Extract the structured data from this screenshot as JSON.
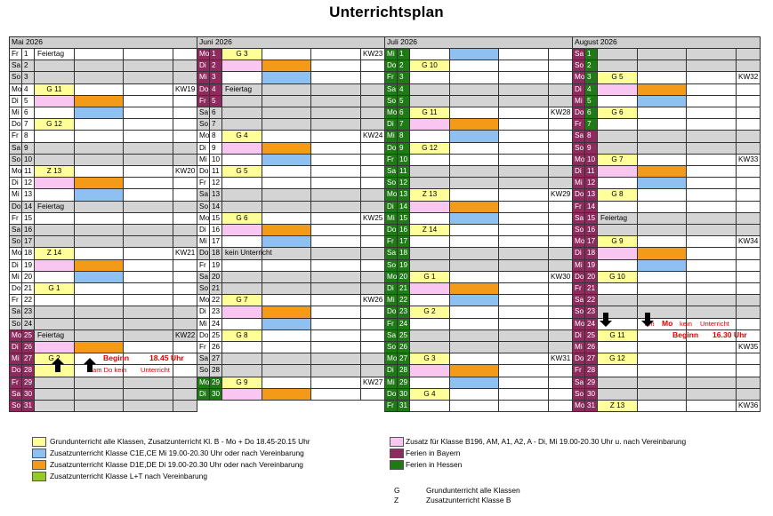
{
  "title": "Unterrichtsplan",
  "colors": {
    "yellow": "#ffff99",
    "pink": "#f8c6f0",
    "blue": "#8fc0f2",
    "orange": "#f39a19",
    "lightgreen": "#95c928",
    "bayern": "#8e2a5e",
    "hessen": "#1e7a14",
    "weekend": "#d4d4d4"
  },
  "months": [
    {
      "name": "Mai 2026",
      "rows": [
        {
          "d": "Fr",
          "n": "1",
          "dc": "w",
          "text": "Feiertag"
        },
        {
          "d": "Sa",
          "n": "2",
          "dc": "gy",
          "text": "",
          "row": "gy"
        },
        {
          "d": "So",
          "n": "3",
          "dc": "gy",
          "text": "",
          "row": "gy"
        },
        {
          "d": "Mo",
          "n": "4",
          "dc": "w",
          "y": "G 11",
          "kw": "KW19"
        },
        {
          "d": "Di",
          "n": "5",
          "dc": "w",
          "p": true,
          "o": true
        },
        {
          "d": "Mi",
          "n": "6",
          "dc": "w",
          "b": true
        },
        {
          "d": "Do",
          "n": "7",
          "dc": "w",
          "y": "G 12"
        },
        {
          "d": "Fr",
          "n": "8",
          "dc": "w"
        },
        {
          "d": "Sa",
          "n": "9",
          "dc": "gy",
          "row": "gy"
        },
        {
          "d": "So",
          "n": "10",
          "dc": "gy",
          "row": "gy"
        },
        {
          "d": "Mo",
          "n": "11",
          "dc": "w",
          "y": "Z 13",
          "kw": "KW20"
        },
        {
          "d": "Di",
          "n": "12",
          "dc": "w",
          "p": true,
          "o": true
        },
        {
          "d": "Mi",
          "n": "13",
          "dc": "w",
          "b": true
        },
        {
          "d": "Do",
          "n": "14",
          "dc": "gy",
          "text": "Feiertag",
          "row": "gy"
        },
        {
          "d": "Fr",
          "n": "15",
          "dc": "w"
        },
        {
          "d": "Sa",
          "n": "16",
          "dc": "gy",
          "row": "gy"
        },
        {
          "d": "So",
          "n": "17",
          "dc": "gy",
          "row": "gy"
        },
        {
          "d": "Mo",
          "n": "18",
          "dc": "w",
          "y": "Z 14",
          "kw": "KW21"
        },
        {
          "d": "Di",
          "n": "19",
          "dc": "w",
          "p": true,
          "o": true
        },
        {
          "d": "Mi",
          "n": "20",
          "dc": "w",
          "b": true
        },
        {
          "d": "Do",
          "n": "21",
          "dc": "w",
          "y": "G 1"
        },
        {
          "d": "Fr",
          "n": "22",
          "dc": "w"
        },
        {
          "d": "Sa",
          "n": "23",
          "dc": "gy",
          "row": "gy"
        },
        {
          "d": "So",
          "n": "24",
          "dc": "gy",
          "row": "gy"
        },
        {
          "d": "Mo",
          "n": "25",
          "dc": "mar",
          "text": "Feiertag",
          "kw": "KW22",
          "row": "gy"
        },
        {
          "d": "Di",
          "n": "26",
          "dc": "mar",
          "p": true,
          "o": true
        },
        {
          "d": "Mi",
          "n": "27",
          "dc": "mar",
          "y": "G 2"
        },
        {
          "d": "Do",
          "n": "28",
          "dc": "mar",
          "y": ""
        },
        {
          "d": "Fr",
          "n": "29",
          "dc": "mar",
          "row": "gy"
        },
        {
          "d": "Sa",
          "n": "30",
          "dc": "mar",
          "row": "gy"
        },
        {
          "d": "So",
          "n": "31",
          "dc": "mar",
          "row": "gy"
        }
      ]
    },
    {
      "name": "Juni 2026",
      "rows": [
        {
          "d": "Mo",
          "n": "1",
          "dc": "mar",
          "y": "G 3",
          "kw": "KW23"
        },
        {
          "d": "Di",
          "n": "2",
          "dc": "mar",
          "p": true,
          "o": true
        },
        {
          "d": "Mi",
          "n": "3",
          "dc": "mar",
          "b": true
        },
        {
          "d": "Do",
          "n": "4",
          "dc": "mar",
          "text": "Feiertag",
          "row": "gy"
        },
        {
          "d": "Fr",
          "n": "5",
          "dc": "mar",
          "row": "gy"
        },
        {
          "d": "Sa",
          "n": "6",
          "dc": "gy",
          "row": "gy"
        },
        {
          "d": "So",
          "n": "7",
          "dc": "gy",
          "row": "gy"
        },
        {
          "d": "Mo",
          "n": "8",
          "dc": "w",
          "y": "G 4",
          "kw": "KW24"
        },
        {
          "d": "Di",
          "n": "9",
          "dc": "w",
          "p": true,
          "o": true
        },
        {
          "d": "Mi",
          "n": "10",
          "dc": "w",
          "b": true
        },
        {
          "d": "Do",
          "n": "11",
          "dc": "w",
          "y": "G 5"
        },
        {
          "d": "Fr",
          "n": "12",
          "dc": "w"
        },
        {
          "d": "Sa",
          "n": "13",
          "dc": "gy",
          "row": "gy"
        },
        {
          "d": "So",
          "n": "14",
          "dc": "gy",
          "row": "gy"
        },
        {
          "d": "Mo",
          "n": "15",
          "dc": "w",
          "y": "G 6",
          "kw": "KW25"
        },
        {
          "d": "Di",
          "n": "16",
          "dc": "w",
          "p": true,
          "o": true
        },
        {
          "d": "Mi",
          "n": "17",
          "dc": "w",
          "b": true
        },
        {
          "d": "Do",
          "n": "18",
          "dc": "gy",
          "text": "kein Unterricht",
          "row": "gy"
        },
        {
          "d": "Fr",
          "n": "19",
          "dc": "w"
        },
        {
          "d": "Sa",
          "n": "20",
          "dc": "gy",
          "row": "gy"
        },
        {
          "d": "So",
          "n": "21",
          "dc": "gy",
          "row": "gy"
        },
        {
          "d": "Mo",
          "n": "22",
          "dc": "w",
          "y": "G 7",
          "kw": "KW26"
        },
        {
          "d": "Di",
          "n": "23",
          "dc": "w",
          "p": true,
          "o": true
        },
        {
          "d": "Mi",
          "n": "24",
          "dc": "w",
          "b": true
        },
        {
          "d": "Do",
          "n": "25",
          "dc": "w",
          "y": "G 8"
        },
        {
          "d": "Fr",
          "n": "26",
          "dc": "w"
        },
        {
          "d": "Sa",
          "n": "27",
          "dc": "gy",
          "row": "gy"
        },
        {
          "d": "So",
          "n": "28",
          "dc": "gy",
          "row": "gy"
        },
        {
          "d": "Mo",
          "n": "29",
          "dc": "grn",
          "y": "G 9",
          "kw": "KW27"
        },
        {
          "d": "Di",
          "n": "30",
          "dc": "grn",
          "p": true,
          "o": true
        }
      ]
    },
    {
      "name": "Juli 2026",
      "rows": [
        {
          "d": "Mi",
          "n": "1",
          "dc": "grn",
          "b": true
        },
        {
          "d": "Do",
          "n": "2",
          "dc": "grn",
          "y": "G 10"
        },
        {
          "d": "Fr",
          "n": "3",
          "dc": "grn"
        },
        {
          "d": "Sa",
          "n": "4",
          "dc": "grn",
          "row": "gy"
        },
        {
          "d": "So",
          "n": "5",
          "dc": "grn",
          "row": "gy"
        },
        {
          "d": "Mo",
          "n": "6",
          "dc": "grn",
          "y": "G 11",
          "kw": "KW28"
        },
        {
          "d": "Di",
          "n": "7",
          "dc": "grn",
          "p": true,
          "o": true
        },
        {
          "d": "Mi",
          "n": "8",
          "dc": "grn",
          "b": true
        },
        {
          "d": "Do",
          "n": "9",
          "dc": "grn",
          "y": "G 12"
        },
        {
          "d": "Fr",
          "n": "10",
          "dc": "grn"
        },
        {
          "d": "Sa",
          "n": "11",
          "dc": "grn",
          "row": "gy"
        },
        {
          "d": "So",
          "n": "12",
          "dc": "grn",
          "row": "gy"
        },
        {
          "d": "Mo",
          "n": "13",
          "dc": "grn",
          "y": "Z 13",
          "kw": "KW29"
        },
        {
          "d": "Di",
          "n": "14",
          "dc": "grn",
          "p": true,
          "o": true
        },
        {
          "d": "Mi",
          "n": "15",
          "dc": "grn",
          "b": true
        },
        {
          "d": "Do",
          "n": "16",
          "dc": "grn",
          "y": "Z 14"
        },
        {
          "d": "Fr",
          "n": "17",
          "dc": "grn"
        },
        {
          "d": "Sa",
          "n": "18",
          "dc": "grn",
          "row": "gy"
        },
        {
          "d": "So",
          "n": "19",
          "dc": "grn",
          "row": "gy"
        },
        {
          "d": "Mo",
          "n": "20",
          "dc": "grn",
          "y": "G 1",
          "kw": "KW30"
        },
        {
          "d": "Di",
          "n": "21",
          "dc": "grn",
          "p": true,
          "o": true
        },
        {
          "d": "Mi",
          "n": "22",
          "dc": "grn",
          "b": true
        },
        {
          "d": "Do",
          "n": "23",
          "dc": "grn",
          "y": "G 2"
        },
        {
          "d": "Fr",
          "n": "24",
          "dc": "grn"
        },
        {
          "d": "Sa",
          "n": "25",
          "dc": "grn",
          "row": "gy"
        },
        {
          "d": "So",
          "n": "26",
          "dc": "grn",
          "row": "gy"
        },
        {
          "d": "Mo",
          "n": "27",
          "dc": "grn",
          "y": "G 3",
          "kw": "KW31"
        },
        {
          "d": "Di",
          "n": "28",
          "dc": "grn",
          "p": true,
          "o": true
        },
        {
          "d": "Mi",
          "n": "29",
          "dc": "grn",
          "b": true
        },
        {
          "d": "Do",
          "n": "30",
          "dc": "grn",
          "y": "G 4"
        },
        {
          "d": "Fr",
          "n": "31",
          "dc": "grn"
        }
      ]
    },
    {
      "name": "August 2026",
      "rows": [
        {
          "d": "Sa",
          "n": "1",
          "dc": "mar",
          "g": "grn",
          "row": "gy"
        },
        {
          "d": "So",
          "n": "2",
          "dc": "mar",
          "g": "grn",
          "row": "gy"
        },
        {
          "d": "Mo",
          "n": "3",
          "dc": "mar",
          "g": "grn",
          "y": "G 5",
          "kw": "KW32"
        },
        {
          "d": "Di",
          "n": "4",
          "dc": "mar",
          "g": "grn",
          "p": true,
          "o": true
        },
        {
          "d": "Mi",
          "n": "5",
          "dc": "mar",
          "g": "grn",
          "b": true
        },
        {
          "d": "Do",
          "n": "6",
          "dc": "mar",
          "g": "grn",
          "y": "G 6"
        },
        {
          "d": "Fr",
          "n": "7",
          "dc": "mar",
          "g": "grn"
        },
        {
          "d": "Sa",
          "n": "8",
          "dc": "mar",
          "row": "gy"
        },
        {
          "d": "So",
          "n": "9",
          "dc": "mar",
          "row": "gy"
        },
        {
          "d": "Mo",
          "n": "10",
          "dc": "mar",
          "y": "G 7",
          "kw": "KW33"
        },
        {
          "d": "Di",
          "n": "11",
          "dc": "mar",
          "p": true,
          "o": true
        },
        {
          "d": "Mi",
          "n": "12",
          "dc": "mar",
          "b": true
        },
        {
          "d": "Do",
          "n": "13",
          "dc": "mar",
          "y": "G 8"
        },
        {
          "d": "Fr",
          "n": "14",
          "dc": "mar"
        },
        {
          "d": "Sa",
          "n": "15",
          "dc": "mar",
          "text": "Feiertag",
          "row": "gy"
        },
        {
          "d": "So",
          "n": "16",
          "dc": "mar",
          "row": "gy"
        },
        {
          "d": "Mo",
          "n": "17",
          "dc": "mar",
          "y": "G 9",
          "kw": "KW34"
        },
        {
          "d": "Di",
          "n": "18",
          "dc": "mar",
          "p": true,
          "o": true
        },
        {
          "d": "Mi",
          "n": "19",
          "dc": "mar",
          "b": true
        },
        {
          "d": "Do",
          "n": "20",
          "dc": "mar",
          "y": "G 10"
        },
        {
          "d": "Fr",
          "n": "21",
          "dc": "mar"
        },
        {
          "d": "Sa",
          "n": "22",
          "dc": "mar",
          "row": "gy"
        },
        {
          "d": "So",
          "n": "23",
          "dc": "mar",
          "row": "gy"
        },
        {
          "d": "Mo",
          "n": "24",
          "dc": "mar"
        },
        {
          "d": "Di",
          "n": "25",
          "dc": "mar",
          "y": "G 11"
        },
        {
          "d": "Mi",
          "n": "26",
          "dc": "mar",
          "kw": "KW35"
        },
        {
          "d": "Do",
          "n": "27",
          "dc": "mar",
          "y": "G 12"
        },
        {
          "d": "Fr",
          "n": "28",
          "dc": "mar"
        },
        {
          "d": "Sa",
          "n": "29",
          "dc": "mar",
          "row": "gy"
        },
        {
          "d": "So",
          "n": "30",
          "dc": "mar",
          "row": "gy"
        },
        {
          "d": "Mo",
          "n": "31",
          "dc": "mar",
          "y": "Z 13",
          "kw": "KW36"
        }
      ]
    }
  ],
  "notes": {
    "beginn_may": "Beginn",
    "time_may": "18.45 Uhr",
    "may_do_kein": "am Do kein",
    "may_unterricht": "Unterricht",
    "aug_am": "am",
    "aug_mo": "Mo",
    "aug_kein": "kein",
    "aug_unterricht": "Unterricht",
    "aug_beginn": "Beginn",
    "aug_time": "16.30 Uhr"
  },
  "legend": {
    "yellow": "Grundunterricht alle Klassen, Zusatzunterricht Kl. B - Mo + Do 18.45-20.15 Uhr",
    "blue": "Zusatzunterricht Klasse C1E,CE  Mi 19.00-20.30 Uhr oder nach Vereinbarung",
    "orange": "Zusatzunterricht Klasse D1E,DE  Di 19.00-20.30 Uhr oder nach Vereinbarung",
    "lightgreen": "Zusatzunterricht Klasse L+T nach Vereinbarung",
    "pink": "Zusatz für Klasse B196, AM, A1, A2, A - Di, Mi 19.00-20.30 Uhr u. nach Vereinbarung",
    "bayern": "Ferien in Bayern",
    "hessen": "Ferien in Hessen",
    "g_key": "G",
    "g_text": "Grundunterricht alle Klassen",
    "z_key": "Z",
    "z_text": "Zusatzunterricht Klasse B"
  }
}
